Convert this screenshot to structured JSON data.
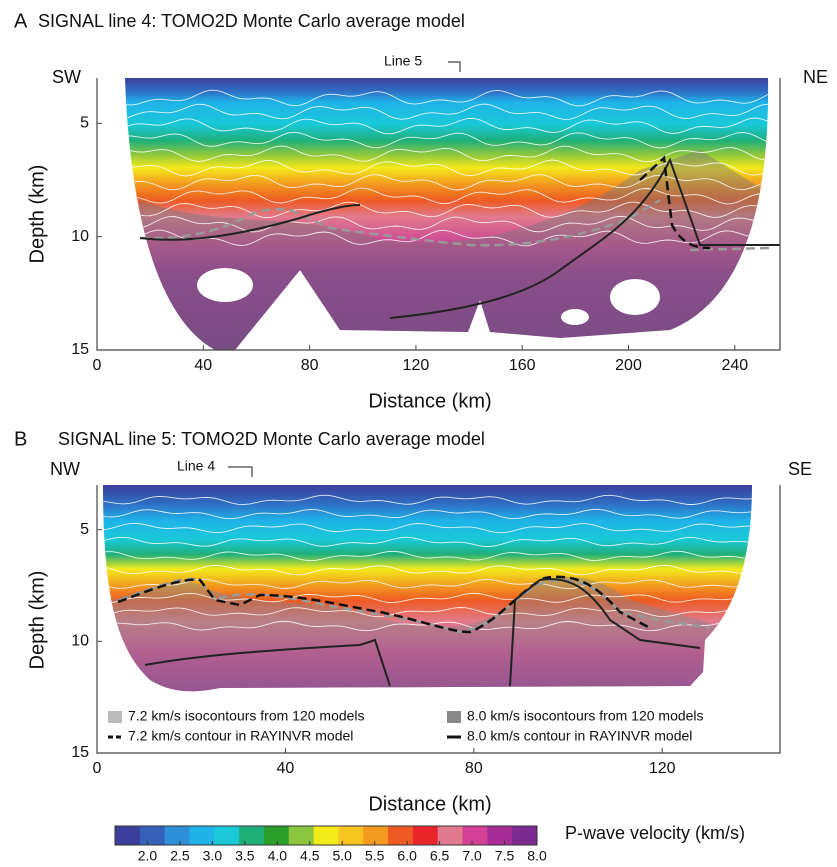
{
  "chart_data": [
    {
      "type": "heatmap",
      "panel_label": "A",
      "title": "SIGNAL line 4: TOMO2D Monte Carlo average model",
      "left_label": "SW",
      "right_label": "NE",
      "marker_label": "Line 5",
      "x_label": "Distance (km)",
      "y_label": "Depth (km)",
      "xlim": [
        0,
        257
      ],
      "ylim": [
        3,
        15
      ],
      "xticks": [
        0,
        40,
        80,
        120,
        160,
        200,
        240
      ],
      "yticks": [
        5,
        10,
        15
      ]
    },
    {
      "type": "heatmap",
      "panel_label": "B",
      "title": "SIGNAL line 5: TOMO2D Monte Carlo average model",
      "left_label": "NW",
      "right_label": "SE",
      "marker_label": "Line 4",
      "x_label": "Distance (km)",
      "y_label": "Depth (km)",
      "xlim": [
        0,
        145
      ],
      "ylim": [
        3,
        15
      ],
      "xticks": [
        0,
        40,
        80,
        120
      ],
      "yticks": [
        5,
        10,
        15
      ]
    }
  ],
  "legend": [
    "7.2 km/s isocontours from 120 models",
    "8.0 km/s isocontours from 120 models",
    "7.2 km/s contour in RAYINVR model",
    "8.0 km/s contour in RAYINVR model"
  ],
  "colorbar": {
    "label": "P-wave velocity (km/s)",
    "lim": [
      1.5,
      8
    ],
    "ticks": [
      {
        "value": 2,
        "label": "2.0"
      },
      2.5,
      {
        "value": 3,
        "label": "3.0"
      },
      3.5,
      {
        "value": 4,
        "label": "4.0"
      },
      4.5,
      {
        "value": 5,
        "label": "5.0"
      },
      5.5,
      {
        "value": 6,
        "label": "6.0"
      },
      6.5,
      {
        "value": 7,
        "label": "7.0"
      },
      7.5,
      {
        "value": 8,
        "label": "8.0"
      }
    ],
    "colors": [
      "#3c3f9a",
      "#3561b8",
      "#2f8fd8",
      "#1fb3e8",
      "#19c9d8",
      "#1fb07a",
      "#2aa02a",
      "#8cc63f",
      "#f3ea1a",
      "#f7c51e",
      "#f39a1f",
      "#ee5a22",
      "#e8262a",
      "#e27a8d",
      "#d43f96",
      "#a72c98",
      "#7b2a90"
    ]
  }
}
